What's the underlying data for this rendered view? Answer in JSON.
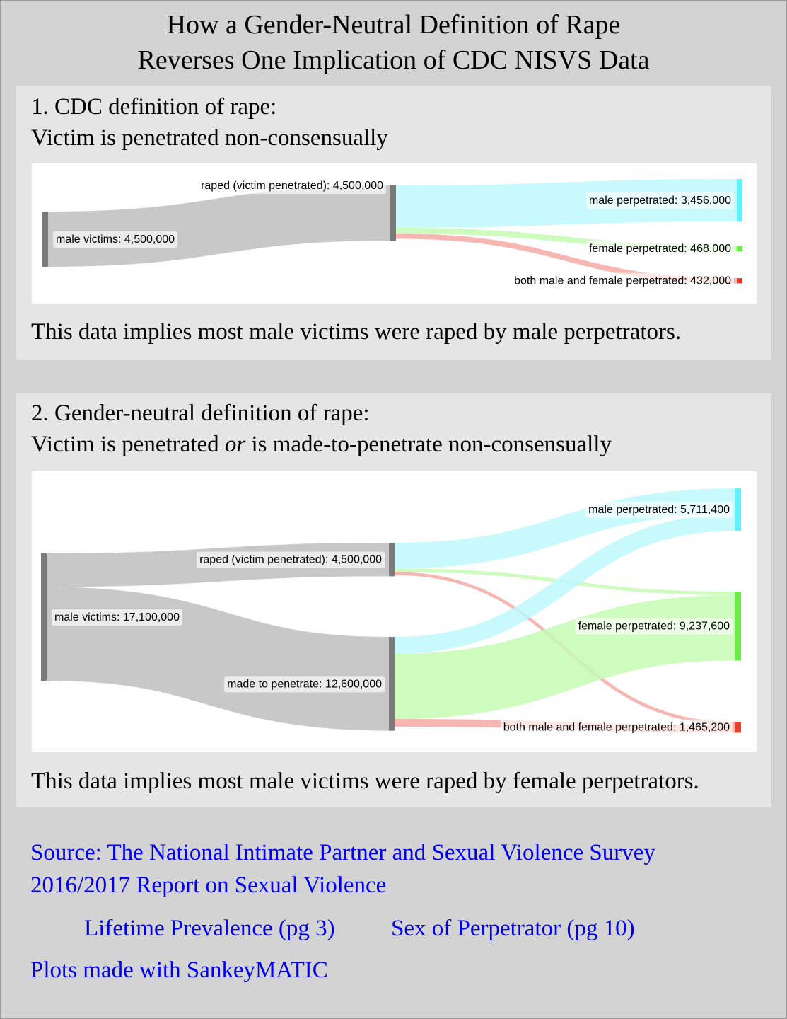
{
  "title": {
    "line1": "How a Gender-Neutral Definition of Rape",
    "line2": "Reverses One Implication of CDC NISVS Data"
  },
  "panel1": {
    "heading1": "1. CDC definition of rape:",
    "heading2": "Victim is penetrated non-consensually",
    "implication": "This data implies most male victims were raped by male perpetrators."
  },
  "panel2": {
    "heading1": "2. Gender-neutral definition of rape:",
    "heading2_pre": "Victim is penetrated ",
    "heading2_em": "or",
    "heading2_post": " is made-to-penetrate non-consensually",
    "implication": "This data implies most male victims were raped by female perpetrators."
  },
  "sources": {
    "source_line1": "Source: The National Intimate Partner and Sexual Violence Survey",
    "source_line2": "2016/2017 Report on Sexual Violence",
    "link_prevalence": "Lifetime Prevalence (pg 3)",
    "link_perpetrator": "Sex of Perpetrator (pg 10)",
    "plots_made_with": "Plots made with SankeyMATIC"
  },
  "colors": {
    "node_gray": "#7a7a7a",
    "flow_gray": "#c8c8c8",
    "male": "#5ff2ff",
    "male_flow": "#bdf8fd",
    "female": "#66ee44",
    "female_flow": "#c6fbb4",
    "both": "#e8402d",
    "both_flow": "#f5aaa4"
  },
  "chart_data": [
    {
      "type": "sankey",
      "nodes": [
        {
          "id": "male_victims",
          "label": "male victims: 4,500,000",
          "value": 4500000
        },
        {
          "id": "raped",
          "label": "raped (victim penetrated): 4,500,000",
          "value": 4500000
        },
        {
          "id": "male_perp",
          "label": "male perpetrated: 3,456,000",
          "value": 3456000
        },
        {
          "id": "female_perp",
          "label": "female perpetrated: 468,000",
          "value": 468000
        },
        {
          "id": "both_perp",
          "label": "both male and female perpetrated: 432,000",
          "value": 432000
        }
      ],
      "links": [
        {
          "source": "male_victims",
          "target": "raped",
          "value": 4500000
        },
        {
          "source": "raped",
          "target": "male_perp",
          "value": 3456000
        },
        {
          "source": "raped",
          "target": "female_perp",
          "value": 468000
        },
        {
          "source": "raped",
          "target": "both_perp",
          "value": 432000
        }
      ]
    },
    {
      "type": "sankey",
      "nodes": [
        {
          "id": "male_victims",
          "label": "male victims: 17,100,000",
          "value": 17100000
        },
        {
          "id": "raped",
          "label": "raped (victim penetrated): 4,500,000",
          "value": 4500000
        },
        {
          "id": "mtp",
          "label": "made to penetrate: 12,600,000",
          "value": 12600000
        },
        {
          "id": "male_perp",
          "label": "male perpetrated: 5,711,400",
          "value": 5711400
        },
        {
          "id": "female_perp",
          "label": "female perpetrated: 9,237,600",
          "value": 9237600
        },
        {
          "id": "both_perp",
          "label": "both male and female perpetrated: 1,465,200",
          "value": 1465200
        }
      ],
      "links": [
        {
          "source": "male_victims",
          "target": "raped",
          "value": 4500000
        },
        {
          "source": "male_victims",
          "target": "mtp",
          "value": 12600000
        },
        {
          "source": "raped",
          "target": "male_perp",
          "value": 3456000
        },
        {
          "source": "raped",
          "target": "female_perp",
          "value": 468000
        },
        {
          "source": "raped",
          "target": "both_perp",
          "value": 432000
        },
        {
          "source": "mtp",
          "target": "male_perp",
          "value": 2255400
        },
        {
          "source": "mtp",
          "target": "female_perp",
          "value": 8769600
        },
        {
          "source": "mtp",
          "target": "both_perp",
          "value": 1033200
        }
      ]
    }
  ]
}
